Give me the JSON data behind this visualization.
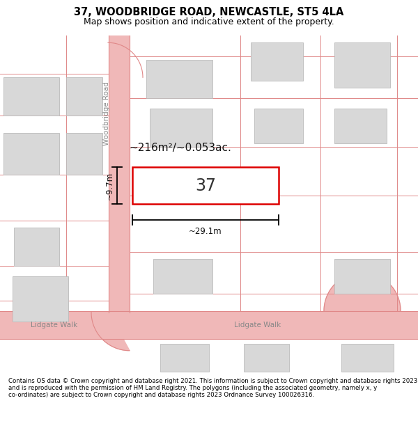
{
  "title": "37, WOODBRIDGE ROAD, NEWCASTLE, ST5 4LA",
  "subtitle": "Map shows position and indicative extent of the property.",
  "footer": "Contains OS data © Crown copyright and database right 2021. This information is subject to Crown copyright and database rights 2023 and is reproduced with the permission of HM Land Registry. The polygons (including the associated geometry, namely x, y co-ordinates) are subject to Crown copyright and database rights 2023 Ordnance Survey 100026316.",
  "map_bg": "#f5f5f5",
  "road_color": "#f0b8b8",
  "building_fill": "#d8d8d8",
  "building_edge": "#bbbbbb",
  "highlight_fill": "#ffffff",
  "highlight_edge": "#dd0000",
  "highlight_lw": 1.8,
  "street_label_woodbridge": "Woodbridge Road",
  "street_label_lidgate_left": "Lidgate Walk",
  "street_label_lidgate_right": "Lidgate Walk",
  "property_label": "37",
  "area_label": "~216m²/~0.053ac.",
  "dim_width": "~29.1m",
  "dim_height": "~9.7m",
  "title_fontsize": 10.5,
  "subtitle_fontsize": 9,
  "footer_fontsize": 6.2,
  "map_label_fontsize": 7.5,
  "property_num_fontsize": 17,
  "area_fontsize": 11,
  "dim_fontsize": 8.5
}
